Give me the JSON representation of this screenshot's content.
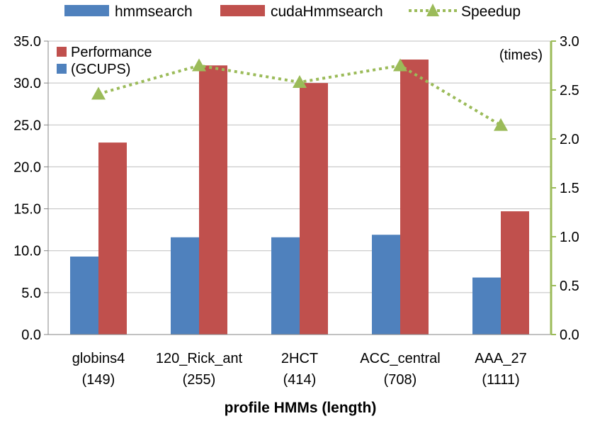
{
  "chart_data": {
    "type": "bar",
    "categories": [
      {
        "name": "globins4",
        "length": "(149)"
      },
      {
        "name": "120_Rick_ant",
        "length": "(255)"
      },
      {
        "name": "2HCT",
        "length": "(414)"
      },
      {
        "name": "ACC_central",
        "length": "(708)"
      },
      {
        "name": "AAA_27",
        "length": "(1111)"
      }
    ],
    "series": [
      {
        "name": "hmmsearch",
        "type": "bar",
        "axis": "left",
        "color": "#4f81bd",
        "values": [
          9.3,
          11.6,
          11.6,
          11.9,
          6.8
        ]
      },
      {
        "name": "cudaHmmsearch",
        "type": "bar",
        "axis": "left",
        "color": "#c0504d",
        "values": [
          22.9,
          32.1,
          30.0,
          32.8,
          14.7
        ]
      },
      {
        "name": "Speedup",
        "type": "line",
        "axis": "right",
        "color": "#9bbb59",
        "values": [
          2.46,
          2.75,
          2.58,
          2.75,
          2.14
        ]
      }
    ],
    "xlabel": "profile HMMs (length)",
    "ylabel_lines": [
      "Performance",
      "(GCUPS)"
    ],
    "y2label": "(times)",
    "ylim": [
      0,
      35
    ],
    "y2lim": [
      0,
      3
    ],
    "yticks": [
      "0.0",
      "5.0",
      "10.0",
      "15.0",
      "20.0",
      "25.0",
      "30.0",
      "35.0"
    ],
    "y2ticks": [
      "0.0",
      "0.5",
      "1.0",
      "1.5",
      "2.0",
      "2.5",
      "3.0"
    ],
    "legend_position": "top",
    "grid": "horizontal"
  }
}
